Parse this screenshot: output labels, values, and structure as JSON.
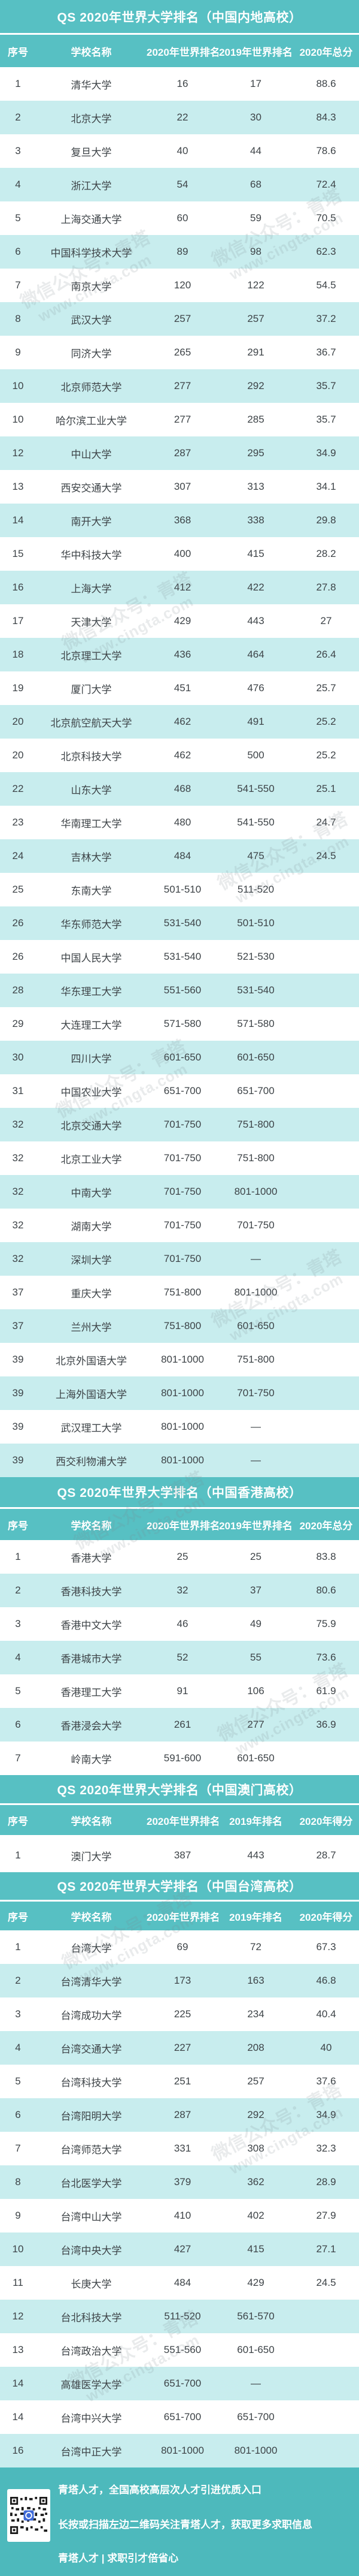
{
  "sections": [
    {
      "title": "QS 2020年世界大学排名（中国内地高校）",
      "columns": [
        "序号",
        "学校名称",
        "2020年世界排名",
        "2019年世界排名",
        "2020年总分"
      ],
      "rows": [
        [
          "1",
          "清华大学",
          "16",
          "17",
          "88.6"
        ],
        [
          "2",
          "北京大学",
          "22",
          "30",
          "84.3"
        ],
        [
          "3",
          "复旦大学",
          "40",
          "44",
          "78.6"
        ],
        [
          "4",
          "浙江大学",
          "54",
          "68",
          "72.4"
        ],
        [
          "5",
          "上海交通大学",
          "60",
          "59",
          "70.5"
        ],
        [
          "6",
          "中国科学技术大学",
          "89",
          "98",
          "62.3"
        ],
        [
          "7",
          "南京大学",
          "120",
          "122",
          "54.5"
        ],
        [
          "8",
          "武汉大学",
          "257",
          "257",
          "37.2"
        ],
        [
          "9",
          "同济大学",
          "265",
          "291",
          "36.7"
        ],
        [
          "10",
          "北京师范大学",
          "277",
          "292",
          "35.7"
        ],
        [
          "10",
          "哈尔滨工业大学",
          "277",
          "285",
          "35.7"
        ],
        [
          "12",
          "中山大学",
          "287",
          "295",
          "34.9"
        ],
        [
          "13",
          "西安交通大学",
          "307",
          "313",
          "34.1"
        ],
        [
          "14",
          "南开大学",
          "368",
          "338",
          "29.8"
        ],
        [
          "15",
          "华中科技大学",
          "400",
          "415",
          "28.2"
        ],
        [
          "16",
          "上海大学",
          "412",
          "422",
          "27.8"
        ],
        [
          "17",
          "天津大学",
          "429",
          "443",
          "27"
        ],
        [
          "18",
          "北京理工大学",
          "436",
          "464",
          "26.4"
        ],
        [
          "19",
          "厦门大学",
          "451",
          "476",
          "25.7"
        ],
        [
          "20",
          "北京航空航天大学",
          "462",
          "491",
          "25.2"
        ],
        [
          "20",
          "北京科技大学",
          "462",
          "500",
          "25.2"
        ],
        [
          "22",
          "山东大学",
          "468",
          "541-550",
          "25.1"
        ],
        [
          "23",
          "华南理工大学",
          "480",
          "541-550",
          "24.7"
        ],
        [
          "24",
          "吉林大学",
          "484",
          "475",
          "24.5"
        ],
        [
          "25",
          "东南大学",
          "501-510",
          "511-520",
          ""
        ],
        [
          "26",
          "华东师范大学",
          "531-540",
          "501-510",
          ""
        ],
        [
          "26",
          "中国人民大学",
          "531-540",
          "521-530",
          ""
        ],
        [
          "28",
          "华东理工大学",
          "551-560",
          "531-540",
          ""
        ],
        [
          "29",
          "大连理工大学",
          "571-580",
          "571-580",
          ""
        ],
        [
          "30",
          "四川大学",
          "601-650",
          "601-650",
          ""
        ],
        [
          "31",
          "中国农业大学",
          "651-700",
          "651-700",
          ""
        ],
        [
          "32",
          "北京交通大学",
          "701-750",
          "751-800",
          ""
        ],
        [
          "32",
          "北京工业大学",
          "701-750",
          "751-800",
          ""
        ],
        [
          "32",
          "中南大学",
          "701-750",
          "801-1000",
          ""
        ],
        [
          "32",
          "湖南大学",
          "701-750",
          "701-750",
          ""
        ],
        [
          "32",
          "深圳大学",
          "701-750",
          "—",
          ""
        ],
        [
          "37",
          "重庆大学",
          "751-800",
          "801-1000",
          ""
        ],
        [
          "37",
          "兰州大学",
          "751-800",
          "601-650",
          ""
        ],
        [
          "39",
          "北京外国语大学",
          "801-1000",
          "751-800",
          ""
        ],
        [
          "39",
          "上海外国语大学",
          "801-1000",
          "701-750",
          ""
        ],
        [
          "39",
          "武汉理工大学",
          "801-1000",
          "—",
          ""
        ],
        [
          "39",
          "西交利物浦大学",
          "801-1000",
          "—",
          ""
        ]
      ]
    },
    {
      "title": "QS 2020年世界大学排名（中国香港高校）",
      "columns": [
        "序号",
        "学校名称",
        "2020年世界排名",
        "2019年世界排名",
        "2020年总分"
      ],
      "rows": [
        [
          "1",
          "香港大学",
          "25",
          "25",
          "83.8"
        ],
        [
          "2",
          "香港科技大学",
          "32",
          "37",
          "80.6"
        ],
        [
          "3",
          "香港中文大学",
          "46",
          "49",
          "75.9"
        ],
        [
          "4",
          "香港城市大学",
          "52",
          "55",
          "73.6"
        ],
        [
          "5",
          "香港理工大学",
          "91",
          "106",
          "61.9"
        ],
        [
          "6",
          "香港浸会大学",
          "261",
          "277",
          "36.9"
        ],
        [
          "7",
          "岭南大学",
          "591-600",
          "601-650",
          ""
        ]
      ]
    },
    {
      "title": "QS 2020年世界大学排名（中国澳门高校）",
      "columns": [
        "序号",
        "学校名称",
        "2020年世界排名",
        "2019年排名",
        "2020年得分"
      ],
      "rows": [
        [
          "1",
          "澳门大学",
          "387",
          "443",
          "28.7"
        ]
      ]
    },
    {
      "title": "QS 2020年世界大学排名（中国台湾高校）",
      "columns": [
        "序号",
        "学校名称",
        "2020年世界排名",
        "2019年排名",
        "2020年得分"
      ],
      "rows": [
        [
          "1",
          "台湾大学",
          "69",
          "72",
          "67.3"
        ],
        [
          "2",
          "台湾清华大学",
          "173",
          "163",
          "46.8"
        ],
        [
          "3",
          "台湾成功大学",
          "225",
          "234",
          "40.4"
        ],
        [
          "4",
          "台湾交通大学",
          "227",
          "208",
          "40"
        ],
        [
          "5",
          "台湾科技大学",
          "251",
          "257",
          "37.6"
        ],
        [
          "6",
          "台湾阳明大学",
          "287",
          "292",
          "34.9"
        ],
        [
          "7",
          "台湾师范大学",
          "331",
          "308",
          "32.3"
        ],
        [
          "8",
          "台北医学大学",
          "379",
          "362",
          "28.9"
        ],
        [
          "9",
          "台湾中山大学",
          "410",
          "402",
          "27.9"
        ],
        [
          "10",
          "台湾中央大学",
          "427",
          "415",
          "27.1"
        ],
        [
          "11",
          "长庚大学",
          "484",
          "429",
          "24.5"
        ],
        [
          "12",
          "台北科技大学",
          "511-520",
          "561-570",
          ""
        ],
        [
          "13",
          "台湾政治大学",
          "551-560",
          "601-650",
          ""
        ],
        [
          "14",
          "高雄医学大学",
          "651-700",
          "—",
          ""
        ],
        [
          "14",
          "台湾中兴大学",
          "651-700",
          "651-700",
          ""
        ],
        [
          "16",
          "台湾中正大学",
          "801-1000",
          "801-1000",
          ""
        ]
      ]
    }
  ],
  "footer": {
    "line1": "青塔人才，全国高校高层次人才引进优质入口",
    "line2": "长按或扫描左边二维码关注青塔人才，获取更多求职信息",
    "line3": "青塔人才 | 求职引才倍省心"
  },
  "watermark": {
    "line1": "微信公众号：青塔",
    "line2": "www.cingta.com"
  },
  "colors": {
    "teal_band": "#57c0c3",
    "light_row": "#c8edee",
    "footer_teal": "#4db9bc",
    "cell_text": "#3d4347"
  }
}
